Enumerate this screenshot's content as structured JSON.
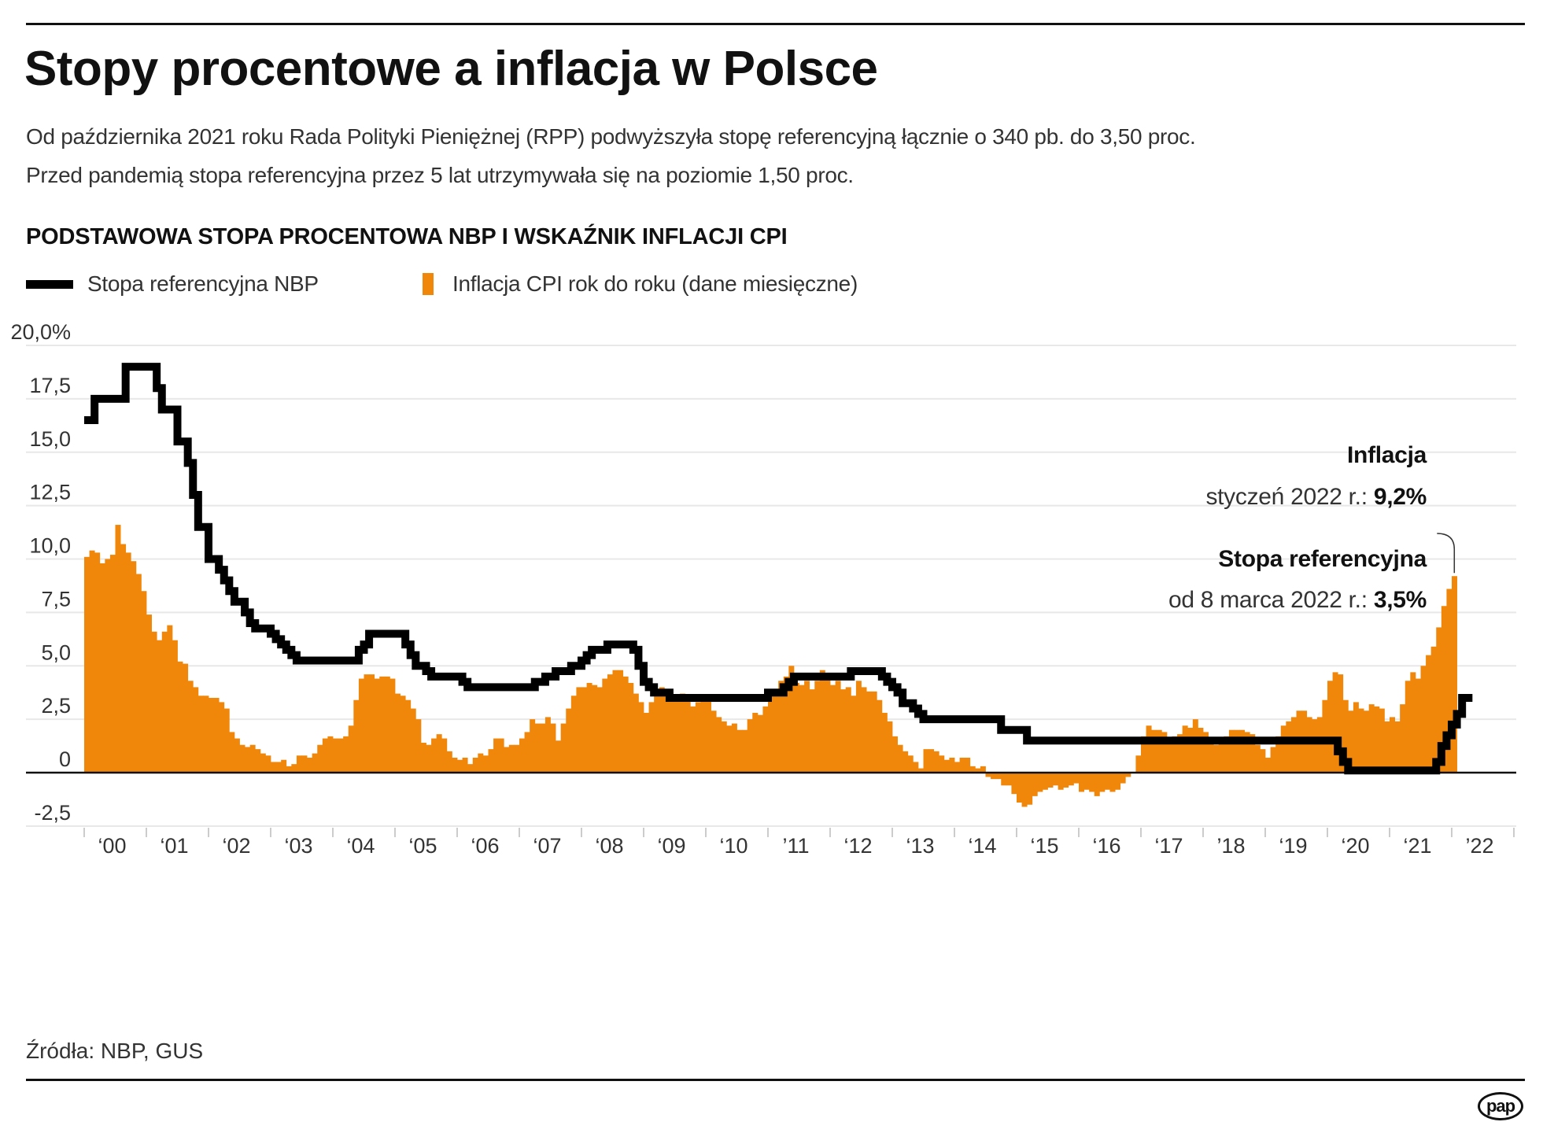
{
  "title": "Stopy procentowe a inflacja w Polsce",
  "subtitle": [
    "Od października 2021 roku Rada Polityki Pieniężnej (RPP) podwyższyła stopę referencyjną łącznie o 340 pb. do 3,50 proc.",
    "Przed pandemią stopa referencyjna przez 5 lat utrzymywała się na poziomie 1,50 proc."
  ],
  "source": "Źródła: NBP, GUS",
  "logo_text": "pap",
  "annotations": {
    "inflation_title": "Inflacja",
    "inflation_label": "styczeń 2022 r.:",
    "inflation_value": "9,2%",
    "rate_title": "Stopa referencyjna",
    "rate_label": "od 8 marca 2022 r.:",
    "rate_value": "3,5%"
  },
  "chart_data": {
    "type": "bar+line",
    "title": "PODSTAWOWA STOPA PROCENTOWA NBP I WSKAŹNIK INFLACJI CPI",
    "ylim": [
      -3.5,
      20
    ],
    "yticks": [
      20,
      17.5,
      15,
      12.5,
      10,
      7.5,
      5,
      2.5,
      0,
      -2.5
    ],
    "ytick_labels": [
      "20,0%",
      "17,5",
      "15,0",
      "12,5",
      "10,0",
      "7,5",
      "5,0",
      "2,5",
      "0",
      "-2,5"
    ],
    "xtick_labels": [
      "‘00",
      "‘01",
      "‘02",
      "‘03",
      "‘04",
      "‘05",
      "‘06",
      "‘07",
      "‘08",
      "‘09",
      "‘10",
      "’11",
      "‘12",
      "‘13",
      "‘14",
      "‘15",
      "‘16",
      "‘17",
      "’18",
      "‘19",
      "‘20",
      "‘21",
      "’22"
    ],
    "grid": true,
    "legend_placement": "top-left",
    "colors": {
      "rate": "#000000",
      "cpi": "#F0870A",
      "grid": "#e8e8e8"
    },
    "series": [
      {
        "name": "Stopa referencyjna NBP",
        "type": "step-line",
        "points": [
          [
            "2000-01",
            16.5
          ],
          [
            "2000-03",
            17.5
          ],
          [
            "2000-09",
            19.0
          ],
          [
            "2001-03",
            18.0
          ],
          [
            "2001-04",
            17.0
          ],
          [
            "2001-07",
            15.5
          ],
          [
            "2001-09",
            14.5
          ],
          [
            "2001-10",
            13.0
          ],
          [
            "2001-11",
            11.5
          ],
          [
            "2002-01",
            10.0
          ],
          [
            "2002-03",
            9.5
          ],
          [
            "2002-04",
            9.0
          ],
          [
            "2002-05",
            8.5
          ],
          [
            "2002-06",
            8.0
          ],
          [
            "2002-08",
            7.5
          ],
          [
            "2002-09",
            7.0
          ],
          [
            "2002-10",
            6.75
          ],
          [
            "2003-01",
            6.5
          ],
          [
            "2003-02",
            6.25
          ],
          [
            "2003-03",
            6.0
          ],
          [
            "2003-04",
            5.75
          ],
          [
            "2003-05",
            5.5
          ],
          [
            "2003-06",
            5.25
          ],
          [
            "2004-06",
            5.75
          ],
          [
            "2004-07",
            6.0
          ],
          [
            "2004-08",
            6.5
          ],
          [
            "2005-03",
            6.0
          ],
          [
            "2005-04",
            5.5
          ],
          [
            "2005-05",
            5.0
          ],
          [
            "2005-07",
            4.75
          ],
          [
            "2005-08",
            4.5
          ],
          [
            "2006-02",
            4.25
          ],
          [
            "2006-03",
            4.0
          ],
          [
            "2007-04",
            4.25
          ],
          [
            "2007-06",
            4.5
          ],
          [
            "2007-08",
            4.75
          ],
          [
            "2007-11",
            5.0
          ],
          [
            "2008-01",
            5.25
          ],
          [
            "2008-02",
            5.5
          ],
          [
            "2008-03",
            5.75
          ],
          [
            "2008-06",
            6.0
          ],
          [
            "2008-11",
            5.75
          ],
          [
            "2008-12",
            5.0
          ],
          [
            "2009-01",
            4.25
          ],
          [
            "2009-02",
            4.0
          ],
          [
            "2009-03",
            3.75
          ],
          [
            "2009-06",
            3.5
          ],
          [
            "2011-01",
            3.75
          ],
          [
            "2011-04",
            4.0
          ],
          [
            "2011-05",
            4.25
          ],
          [
            "2011-06",
            4.5
          ],
          [
            "2012-05",
            4.75
          ],
          [
            "2012-11",
            4.5
          ],
          [
            "2012-12",
            4.25
          ],
          [
            "2013-01",
            4.0
          ],
          [
            "2013-02",
            3.75
          ],
          [
            "2013-03",
            3.25
          ],
          [
            "2013-05",
            3.0
          ],
          [
            "2013-06",
            2.75
          ],
          [
            "2013-07",
            2.5
          ],
          [
            "2014-10",
            2.0
          ],
          [
            "2015-03",
            1.5
          ],
          [
            "2020-03",
            1.0
          ],
          [
            "2020-04",
            0.5
          ],
          [
            "2020-05",
            0.1
          ],
          [
            "2021-10",
            0.5
          ],
          [
            "2021-11",
            1.25
          ],
          [
            "2021-12",
            1.75
          ],
          [
            "2022-01",
            2.25
          ],
          [
            "2022-02",
            2.75
          ],
          [
            "2022-03",
            3.5
          ],
          [
            "2022-04",
            3.5
          ]
        ]
      },
      {
        "name": "Inflacja CPI rok do roku (dane miesięczne)",
        "type": "bar",
        "start": "2000-01",
        "frequency": "monthly",
        "values": [
          10.1,
          10.4,
          10.3,
          9.8,
          10.0,
          10.2,
          11.6,
          10.7,
          10.3,
          9.9,
          9.3,
          8.5,
          7.4,
          6.6,
          6.2,
          6.6,
          6.9,
          6.2,
          5.2,
          5.1,
          4.3,
          4.0,
          3.6,
          3.6,
          3.5,
          3.5,
          3.3,
          3.0,
          1.9,
          1.6,
          1.3,
          1.2,
          1.3,
          1.1,
          0.9,
          0.8,
          0.5,
          0.5,
          0.6,
          0.3,
          0.4,
          0.8,
          0.8,
          0.7,
          0.9,
          1.3,
          1.6,
          1.7,
          1.6,
          1.6,
          1.7,
          2.2,
          3.4,
          4.4,
          4.6,
          4.6,
          4.4,
          4.5,
          4.5,
          4.4,
          3.7,
          3.6,
          3.4,
          3.0,
          2.5,
          1.4,
          1.3,
          1.6,
          1.8,
          1.6,
          1.0,
          0.7,
          0.6,
          0.7,
          0.4,
          0.7,
          0.9,
          0.8,
          1.1,
          1.6,
          1.6,
          1.2,
          1.3,
          1.3,
          1.6,
          1.9,
          2.5,
          2.3,
          2.3,
          2.6,
          2.3,
          1.5,
          2.3,
          3.0,
          3.6,
          4.0,
          4.0,
          4.2,
          4.1,
          4.0,
          4.4,
          4.6,
          4.8,
          4.8,
          4.5,
          4.2,
          3.7,
          3.3,
          2.8,
          3.3,
          3.6,
          4.0,
          3.6,
          3.5,
          3.6,
          3.7,
          3.4,
          3.1,
          3.3,
          3.5,
          3.5,
          2.9,
          2.6,
          2.4,
          2.2,
          2.3,
          2.0,
          2.0,
          2.5,
          2.8,
          2.7,
          3.1,
          3.6,
          3.6,
          4.3,
          4.5,
          5.0,
          4.2,
          4.1,
          4.3,
          3.9,
          4.3,
          4.8,
          4.6,
          4.1,
          4.3,
          3.9,
          4.0,
          3.6,
          4.3,
          4.0,
          3.8,
          3.8,
          3.4,
          2.8,
          2.4,
          1.7,
          1.3,
          1.0,
          0.8,
          0.5,
          0.2,
          1.1,
          1.1,
          1.0,
          0.8,
          0.6,
          0.7,
          0.5,
          0.7,
          0.7,
          0.3,
          0.2,
          0.3,
          -0.2,
          -0.3,
          -0.3,
          -0.6,
          -0.6,
          -1.0,
          -1.4,
          -1.6,
          -1.5,
          -1.1,
          -0.9,
          -0.8,
          -0.7,
          -0.6,
          -0.8,
          -0.7,
          -0.6,
          -0.5,
          -0.9,
          -0.8,
          -0.9,
          -1.1,
          -0.9,
          -0.8,
          -0.9,
          -0.8,
          -0.5,
          -0.2,
          0.0,
          0.8,
          1.7,
          2.2,
          2.0,
          2.0,
          1.9,
          1.5,
          1.7,
          1.8,
          2.2,
          2.1,
          2.5,
          2.1,
          1.9,
          1.4,
          1.3,
          1.6,
          1.7,
          2.0,
          2.0,
          2.0,
          1.9,
          1.8,
          1.3,
          1.1,
          0.7,
          1.2,
          1.7,
          2.2,
          2.4,
          2.6,
          2.9,
          2.9,
          2.6,
          2.5,
          2.6,
          3.4,
          4.3,
          4.7,
          4.6,
          3.4,
          2.9,
          3.3,
          3.0,
          2.9,
          3.2,
          3.1,
          3.0,
          2.4,
          2.6,
          2.4,
          3.2,
          4.3,
          4.7,
          4.4,
          5.0,
          5.5,
          5.9,
          6.8,
          7.8,
          8.6,
          9.2
        ]
      }
    ]
  }
}
